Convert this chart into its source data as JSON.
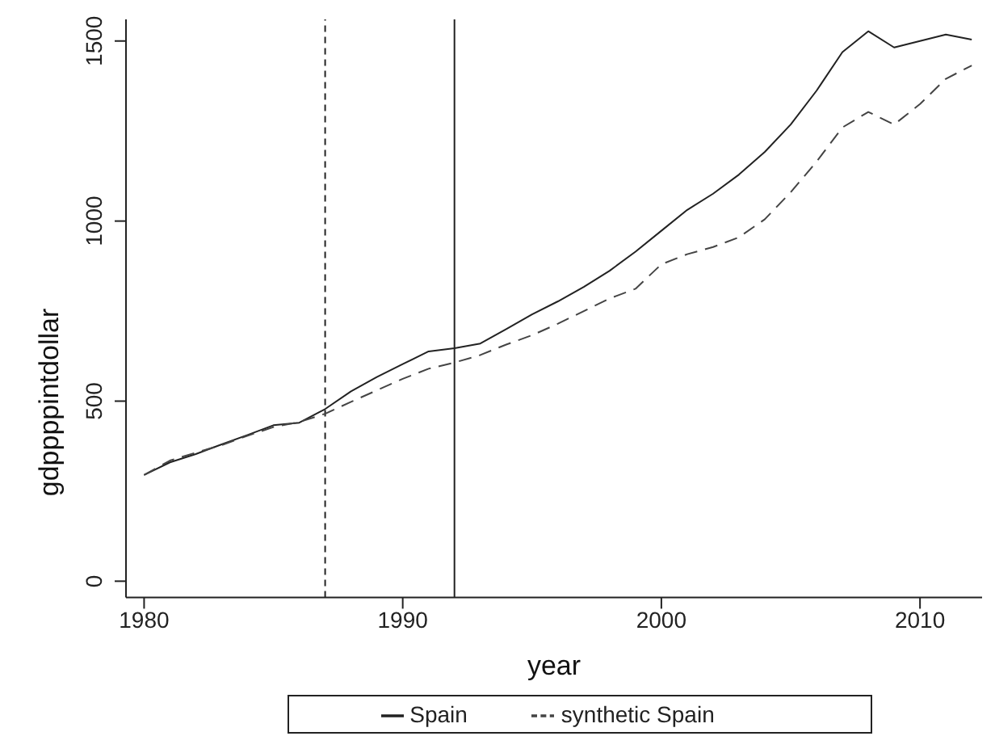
{
  "chart_data": {
    "type": "line",
    "xlabel": "year",
    "ylabel": "gdppppintdollar",
    "x": [
      1980,
      1981,
      1982,
      1983,
      1984,
      1985,
      1986,
      1987,
      1988,
      1989,
      1990,
      1991,
      1992,
      1993,
      1994,
      1995,
      1996,
      1997,
      1998,
      1999,
      2000,
      2001,
      2002,
      2003,
      2004,
      2005,
      2006,
      2007,
      2008,
      2009,
      2010,
      2011,
      2012
    ],
    "series": [
      {
        "name": "Spain",
        "color": "#222222",
        "line_style": "solid",
        "values": [
          295,
          330,
          353,
          380,
          406,
          433,
          440,
          478,
          527,
          567,
          603,
          638,
          647,
          660,
          700,
          741,
          777,
          817,
          862,
          915,
          973,
          1031,
          1076,
          1129,
          1192,
          1268,
          1362,
          1469,
          1527,
          1482,
          1500,
          1518,
          1504
        ]
      },
      {
        "name": "synthetic Spain",
        "color": "#444444",
        "line_style": "dashed",
        "values": [
          295,
          335,
          357,
          378,
          404,
          428,
          442,
          465,
          498,
          530,
          562,
          590,
          607,
          628,
          657,
          683,
          715,
          750,
          785,
          812,
          880,
          908,
          928,
          955,
          1005,
          1080,
          1165,
          1260,
          1303,
          1268,
          1325,
          1395,
          1432
        ]
      }
    ],
    "xlim": [
      1979.3,
      2012.4
    ],
    "xticks": [
      1980,
      1990,
      2000,
      2010
    ],
    "ylim": [
      -45,
      1560
    ],
    "yticks": [
      0,
      500,
      1000,
      1500
    ],
    "ref_lines": [
      {
        "axis": "x",
        "value": 1987,
        "line_style": "dashed",
        "color": "#222222"
      },
      {
        "axis": "x",
        "value": 1992,
        "line_style": "solid",
        "color": "#222222"
      }
    ],
    "grid": false,
    "legend": "bottom",
    "marker": "none"
  }
}
